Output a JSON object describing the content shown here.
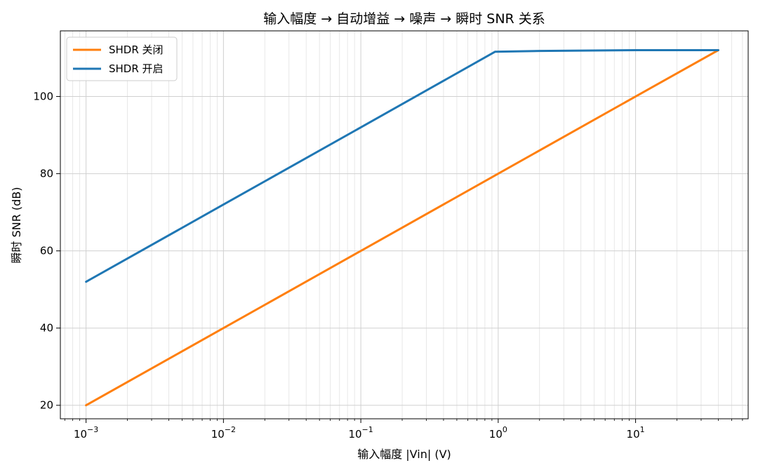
{
  "chart_data": {
    "type": "line",
    "title": "输入幅度 → 自动增益 → 噪声 → 瞬时 SNR 关系",
    "xlabel": "输入幅度 |Vin| (V)",
    "ylabel": "瞬时 SNR (dB)",
    "xscale": "log",
    "xlim": [
      0.00065,
      66
    ],
    "ylim": [
      16.5,
      117
    ],
    "grid": true,
    "legend_position": "top-left",
    "x_ticks": [
      {
        "value": 0.001,
        "mantissa": "10",
        "exp": "−3"
      },
      {
        "value": 0.01,
        "mantissa": "10",
        "exp": "−2"
      },
      {
        "value": 0.1,
        "mantissa": "10",
        "exp": "−1"
      },
      {
        "value": 1,
        "mantissa": "10",
        "exp": "0"
      },
      {
        "value": 10,
        "mantissa": "10",
        "exp": "1"
      }
    ],
    "y_ticks": [
      {
        "value": 20,
        "label": "20"
      },
      {
        "value": 40,
        "label": "40"
      },
      {
        "value": 60,
        "label": "60"
      },
      {
        "value": 80,
        "label": "80"
      },
      {
        "value": 100,
        "label": "100"
      }
    ],
    "series": [
      {
        "name": "SHDR 关闭",
        "color": "#ff7f0e",
        "points": [
          [
            0.001,
            20
          ],
          [
            0.01,
            40
          ],
          [
            0.1,
            60
          ],
          [
            1,
            80
          ],
          [
            10,
            100
          ],
          [
            40,
            112
          ]
        ]
      },
      {
        "name": "SHDR 开启",
        "color": "#1f77b4",
        "points": [
          [
            0.001,
            52
          ],
          [
            0.01,
            72
          ],
          [
            0.1,
            92
          ],
          [
            0.95,
            111.6
          ],
          [
            2,
            111.8
          ],
          [
            10,
            112
          ],
          [
            40,
            112
          ]
        ]
      }
    ]
  }
}
